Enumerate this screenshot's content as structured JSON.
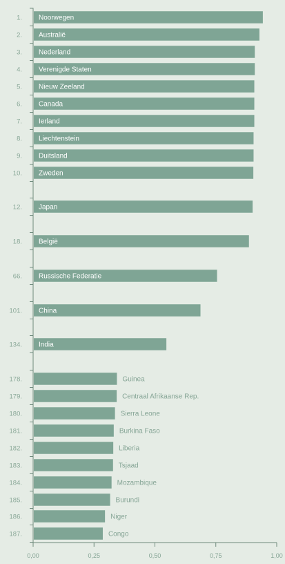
{
  "chart_data": {
    "type": "bar",
    "orientation": "horizontal",
    "xlim": [
      0,
      1
    ],
    "x_ticks": [
      "0,00",
      "0,25",
      "0,50",
      "0,75",
      "1,00"
    ],
    "bars": [
      {
        "rank": "1.",
        "label": "Noorwegen",
        "value": 0.943
      },
      {
        "rank": "2.",
        "label": "Australië",
        "value": 0.929
      },
      {
        "rank": "3.",
        "label": "Nederland",
        "value": 0.91
      },
      {
        "rank": "4.",
        "label": "Verenigde Staten",
        "value": 0.91
      },
      {
        "rank": "5.",
        "label": "Nieuw Zeeland",
        "value": 0.908
      },
      {
        "rank": "6.",
        "label": "Canada",
        "value": 0.908
      },
      {
        "rank": "7.",
        "label": "Ierland",
        "value": 0.908
      },
      {
        "rank": "8.",
        "label": "Liechtenstein",
        "value": 0.905
      },
      {
        "rank": "9.",
        "label": "Duitsland",
        "value": 0.905
      },
      {
        "rank": "10.",
        "label": "Zweden",
        "value": 0.904
      },
      {
        "rank": "12.",
        "label": "Japan",
        "value": 0.901
      },
      {
        "rank": "18.",
        "label": "België",
        "value": 0.886
      },
      {
        "rank": "66.",
        "label": "Russische Federatie",
        "value": 0.755
      },
      {
        "rank": "101.",
        "label": "China",
        "value": 0.687
      },
      {
        "rank": "134.",
        "label": "India",
        "value": 0.547
      },
      {
        "rank": "178.",
        "label": "Guinea",
        "value": 0.344
      },
      {
        "rank": "179.",
        "label": "Centraal Afrikaanse Rep.",
        "value": 0.343
      },
      {
        "rank": "180.",
        "label": "Sierra Leone",
        "value": 0.336
      },
      {
        "rank": "181.",
        "label": "Burkina Faso",
        "value": 0.331
      },
      {
        "rank": "182.",
        "label": "Liberia",
        "value": 0.329
      },
      {
        "rank": "183.",
        "label": "Tsjaad",
        "value": 0.328
      },
      {
        "rank": "184.",
        "label": "Mozambique",
        "value": 0.322
      },
      {
        "rank": "185.",
        "label": "Burundi",
        "value": 0.316
      },
      {
        "rank": "186.",
        "label": "Niger",
        "value": 0.295
      },
      {
        "rank": "187.",
        "label": "Congo",
        "value": 0.286
      }
    ],
    "grid": false,
    "legend": "none"
  },
  "colors": {
    "background": "#e5ece5",
    "bar": "#7fa595",
    "axis": "#6e8a7c",
    "rank_text": "#8aa898",
    "inside_label": "#ffffff",
    "outside_label": "#86a596"
  }
}
